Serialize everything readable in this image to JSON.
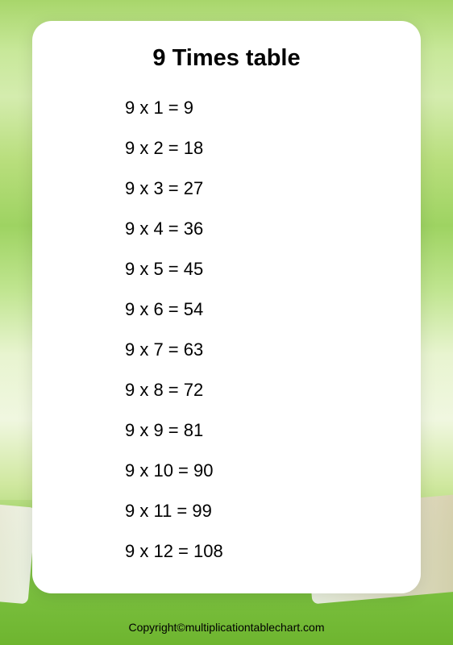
{
  "title": "9 Times table",
  "base_number": 9,
  "rows": [
    "9 x 1 = 9",
    "9 x 2 = 18",
    "9 x 3 = 27",
    "9 x 4 = 36",
    "9 x 5 = 45",
    "9 x 6 = 54",
    "9 x 7 = 63",
    "9 x 8 = 72",
    "9 x 9 = 81",
    "9 x 10 = 90",
    "9 x 11 = 99",
    "9 x 12 = 108"
  ],
  "copyright": "Copyright©multiplicationtablechart.com",
  "styling": {
    "title_fontsize": 29,
    "title_fontweight": "bold",
    "title_color": "#000000",
    "row_fontsize": 22,
    "row_color": "#000000",
    "card_background": "#ffffff",
    "card_border_radius": 24,
    "bg_gradient_colors": [
      "#a8d66b",
      "#c8e89a",
      "#d4ecae",
      "#b8de7c",
      "#9ed362",
      "#c0e590",
      "#e8f4d0",
      "#f0f7e0",
      "#d0e8a0",
      "#9bd060",
      "#88c850",
      "#7bc040"
    ],
    "copyright_fontsize": 14,
    "copyright_color": "#000000"
  }
}
